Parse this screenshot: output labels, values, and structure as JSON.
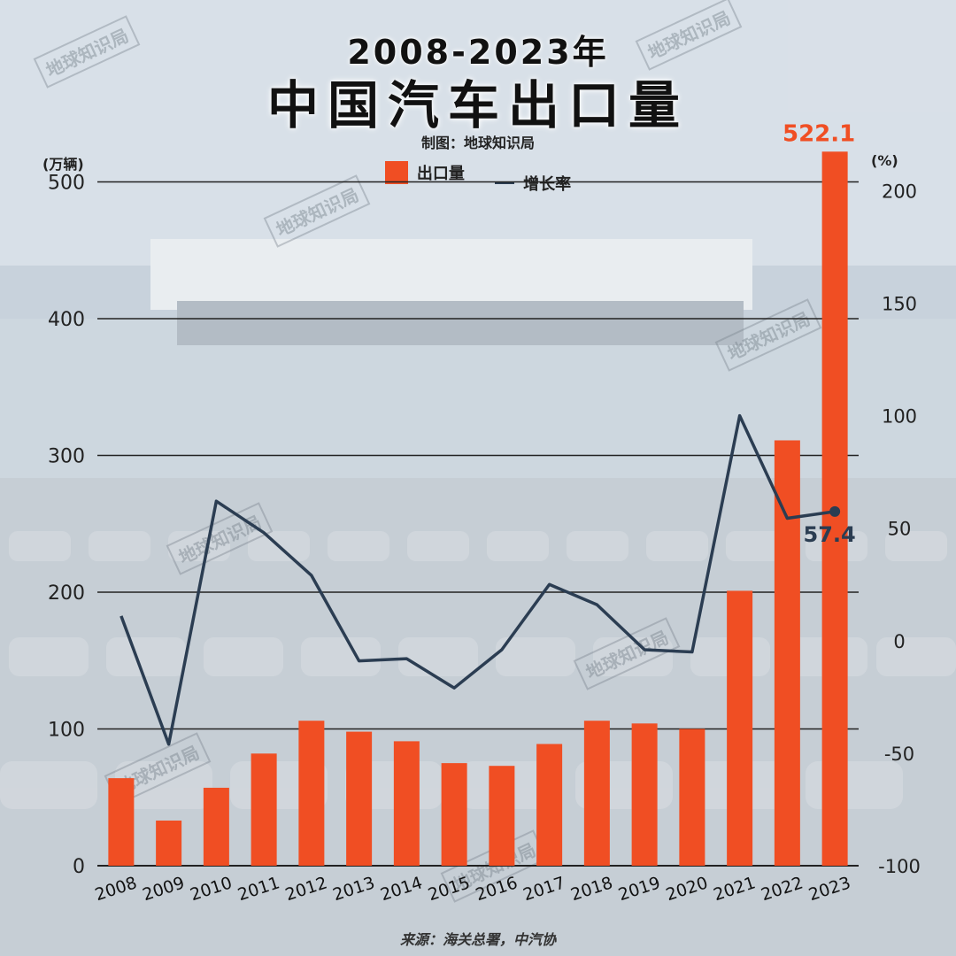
{
  "title_line1": "2008-2023年",
  "title_line2": "中国汽车出口量",
  "credit": "制图：地球知识局",
  "source": "来源：海关总署，中汽协",
  "watermark": "地球知识局",
  "colors": {
    "bar": "#f04e23",
    "line": "#2b3d52",
    "grid": "#222222",
    "highlight_label": "#f04e23"
  },
  "chart_data": {
    "type": "bar",
    "left_unit": "(万辆)",
    "right_unit": "(%)",
    "categories": [
      "2008",
      "2009",
      "2010",
      "2011",
      "2012",
      "2013",
      "2014",
      "2015",
      "2016",
      "2017",
      "2018",
      "2019",
      "2020",
      "2021",
      "2022",
      "2023"
    ],
    "left_ticks": [
      "0",
      "100",
      "200",
      "300",
      "400",
      "500"
    ],
    "right_ticks": [
      "-100",
      "-50",
      "0",
      "50",
      "100",
      "150",
      "200"
    ],
    "ylim_left": [
      0,
      510
    ],
    "ylim_right": [
      -100,
      210
    ],
    "grid": true,
    "legend_position": "top-center",
    "series": [
      {
        "name": "出口量",
        "type": "bar",
        "axis": "left",
        "values": [
          64,
          33,
          57,
          82,
          106,
          98,
          91,
          75,
          73,
          89,
          106,
          104,
          100,
          201,
          311,
          522.1
        ]
      },
      {
        "name": "增长率",
        "type": "line",
        "axis": "right",
        "values": [
          11,
          -46,
          62,
          48,
          29,
          -9,
          -8,
          -21,
          -4,
          25,
          16,
          -4,
          -5,
          100,
          54.4,
          57.4
        ]
      }
    ],
    "annotations": [
      {
        "series": "出口量",
        "category": "2023",
        "text": "522.1"
      },
      {
        "series": "增长率",
        "category": "2023",
        "text": "57.4"
      }
    ]
  }
}
